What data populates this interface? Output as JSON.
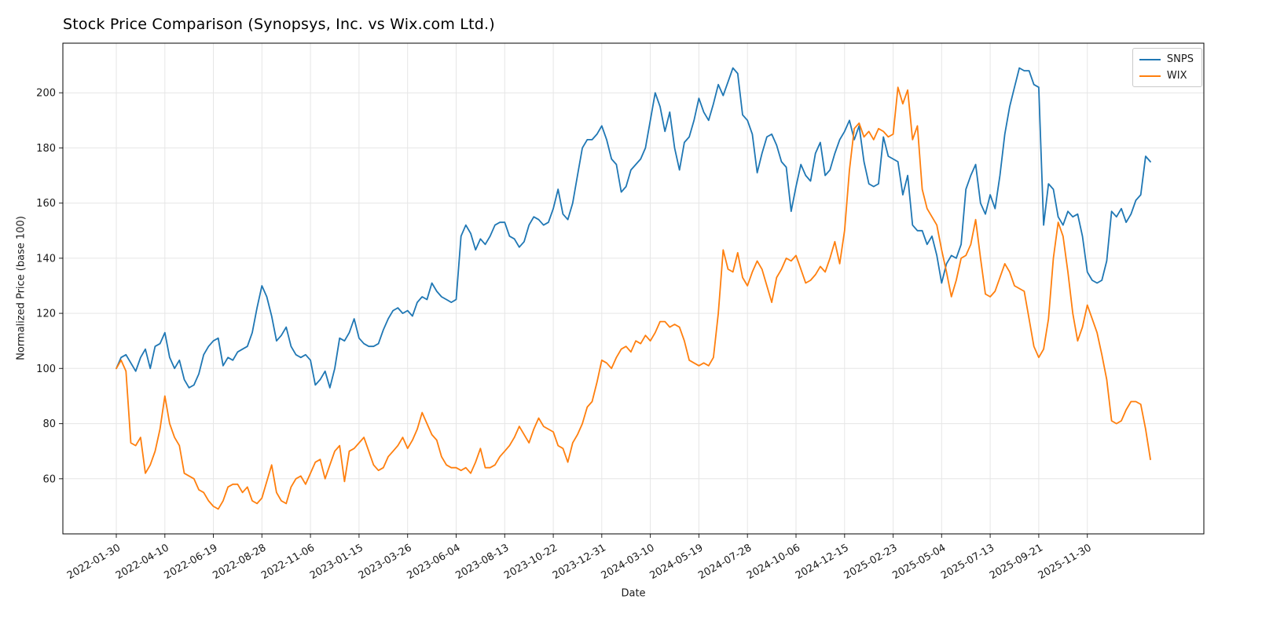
{
  "chart_data": {
    "type": "line",
    "title": "Stock Price Comparison (Synopsys, Inc. vs Wix.com Ltd.)",
    "xlabel": "Date",
    "ylabel": "Normalized Price (base 100)",
    "x_frequency": "weekly",
    "grid": true,
    "legend_position": "upper right",
    "ylim": [
      40,
      218
    ],
    "xlim_weeks": [
      -11,
      224
    ],
    "yticks": [
      60,
      80,
      100,
      120,
      140,
      160,
      180,
      200
    ],
    "xticks": [
      {
        "week": 0,
        "label": "2022-01-30"
      },
      {
        "week": 10,
        "label": "2022-04-10"
      },
      {
        "week": 20,
        "label": "2022-06-19"
      },
      {
        "week": 30,
        "label": "2022-08-28"
      },
      {
        "week": 40,
        "label": "2022-11-06"
      },
      {
        "week": 50,
        "label": "2023-01-15"
      },
      {
        "week": 60,
        "label": "2023-03-26"
      },
      {
        "week": 70,
        "label": "2023-06-04"
      },
      {
        "week": 80,
        "label": "2023-08-13"
      },
      {
        "week": 90,
        "label": "2023-10-22"
      },
      {
        "week": 100,
        "label": "2023-12-31"
      },
      {
        "week": 110,
        "label": "2024-03-10"
      },
      {
        "week": 120,
        "label": "2024-05-19"
      },
      {
        "week": 130,
        "label": "2024-07-28"
      },
      {
        "week": 140,
        "label": "2024-10-06"
      },
      {
        "week": 150,
        "label": "2024-12-15"
      },
      {
        "week": 160,
        "label": "2025-02-23"
      },
      {
        "week": 170,
        "label": "2025-05-04"
      },
      {
        "week": 180,
        "label": "2025-07-13"
      },
      {
        "week": 190,
        "label": "2025-09-21"
      },
      {
        "week": 200,
        "label": "2025-11-30"
      }
    ],
    "series": [
      {
        "name": "SNPS",
        "color": "#1f77b4",
        "values": [
          100,
          104,
          105,
          102,
          99,
          104,
          107,
          100,
          108,
          109,
          113,
          104,
          100,
          103,
          96,
          93,
          94,
          98,
          105,
          108,
          110,
          111,
          101,
          104,
          103,
          106,
          107,
          108,
          113,
          122,
          130,
          126,
          119,
          110,
          112,
          115,
          108,
          105,
          104,
          105,
          103,
          94,
          96,
          99,
          93,
          100,
          111,
          110,
          113,
          118,
          111,
          109,
          108,
          108,
          109,
          114,
          118,
          121,
          122,
          120,
          121,
          119,
          124,
          126,
          125,
          131,
          128,
          126,
          125,
          124,
          125,
          148,
          152,
          149,
          143,
          147,
          145,
          148,
          152,
          153,
          153,
          148,
          147,
          144,
          146,
          152,
          155,
          154,
          152,
          153,
          158,
          165,
          156,
          154,
          160,
          170,
          180,
          183,
          183,
          185,
          188,
          183,
          176,
          174,
          164,
          166,
          172,
          174,
          176,
          180,
          190,
          200,
          195,
          186,
          193,
          180,
          172,
          182,
          184,
          190,
          198,
          193,
          190,
          196,
          203,
          199,
          204,
          209,
          207,
          192,
          190,
          185,
          171,
          178,
          184,
          185,
          181,
          175,
          173,
          157,
          166,
          174,
          170,
          168,
          178,
          182,
          170,
          172,
          178,
          183,
          186,
          190,
          183,
          188,
          175,
          167,
          166,
          167,
          184,
          177,
          176,
          175,
          163,
          170,
          152,
          150,
          150,
          145,
          148,
          141,
          131,
          138,
          141,
          140,
          145,
          165,
          170,
          174,
          160,
          156,
          163,
          158,
          170,
          185,
          195,
          202,
          209,
          208,
          208,
          203,
          202,
          152,
          167,
          165,
          155,
          152,
          157,
          155,
          156,
          148,
          135,
          132,
          131,
          132,
          139,
          157,
          155,
          158,
          153,
          156,
          161,
          163,
          177,
          175
        ]
      },
      {
        "name": "WIX",
        "color": "#ff7f0e",
        "values": [
          100,
          103,
          99,
          73,
          72,
          75,
          62,
          65,
          70,
          78,
          90,
          80,
          75,
          72,
          62,
          61,
          60,
          56,
          55,
          52,
          50,
          49,
          52,
          57,
          58,
          58,
          55,
          57,
          52,
          51,
          53,
          59,
          65,
          55,
          52,
          51,
          57,
          60,
          61,
          58,
          62,
          66,
          67,
          60,
          65,
          70,
          72,
          59,
          70,
          71,
          73,
          75,
          70,
          65,
          63,
          64,
          68,
          70,
          72,
          75,
          71,
          74,
          78,
          84,
          80,
          76,
          74,
          68,
          65,
          64,
          64,
          63,
          64,
          62,
          66,
          71,
          64,
          64,
          65,
          68,
          70,
          72,
          75,
          79,
          76,
          73,
          78,
          82,
          79,
          78,
          77,
          72,
          71,
          66,
          73,
          76,
          80,
          86,
          88,
          95,
          103,
          102,
          100,
          104,
          107,
          108,
          106,
          110,
          109,
          112,
          110,
          113,
          117,
          117,
          115,
          116,
          115,
          110,
          103,
          102,
          101,
          102,
          101,
          104,
          120,
          143,
          136,
          135,
          142,
          133,
          130,
          135,
          139,
          136,
          130,
          124,
          133,
          136,
          140,
          139,
          141,
          136,
          131,
          132,
          134,
          137,
          135,
          140,
          146,
          138,
          150,
          172,
          187,
          189,
          184,
          186,
          183,
          187,
          186,
          184,
          185,
          202,
          196,
          201,
          183,
          188,
          165,
          158,
          155,
          152,
          143,
          135,
          126,
          132,
          140,
          141,
          145,
          154,
          140,
          127,
          126,
          128,
          133,
          138,
          135,
          130,
          129,
          128,
          118,
          108,
          104,
          107,
          118,
          140,
          153,
          148,
          135,
          120,
          110,
          115,
          123,
          118,
          113,
          105,
          96,
          81,
          80,
          81,
          85,
          88,
          88,
          87,
          78,
          67
        ]
      }
    ]
  }
}
